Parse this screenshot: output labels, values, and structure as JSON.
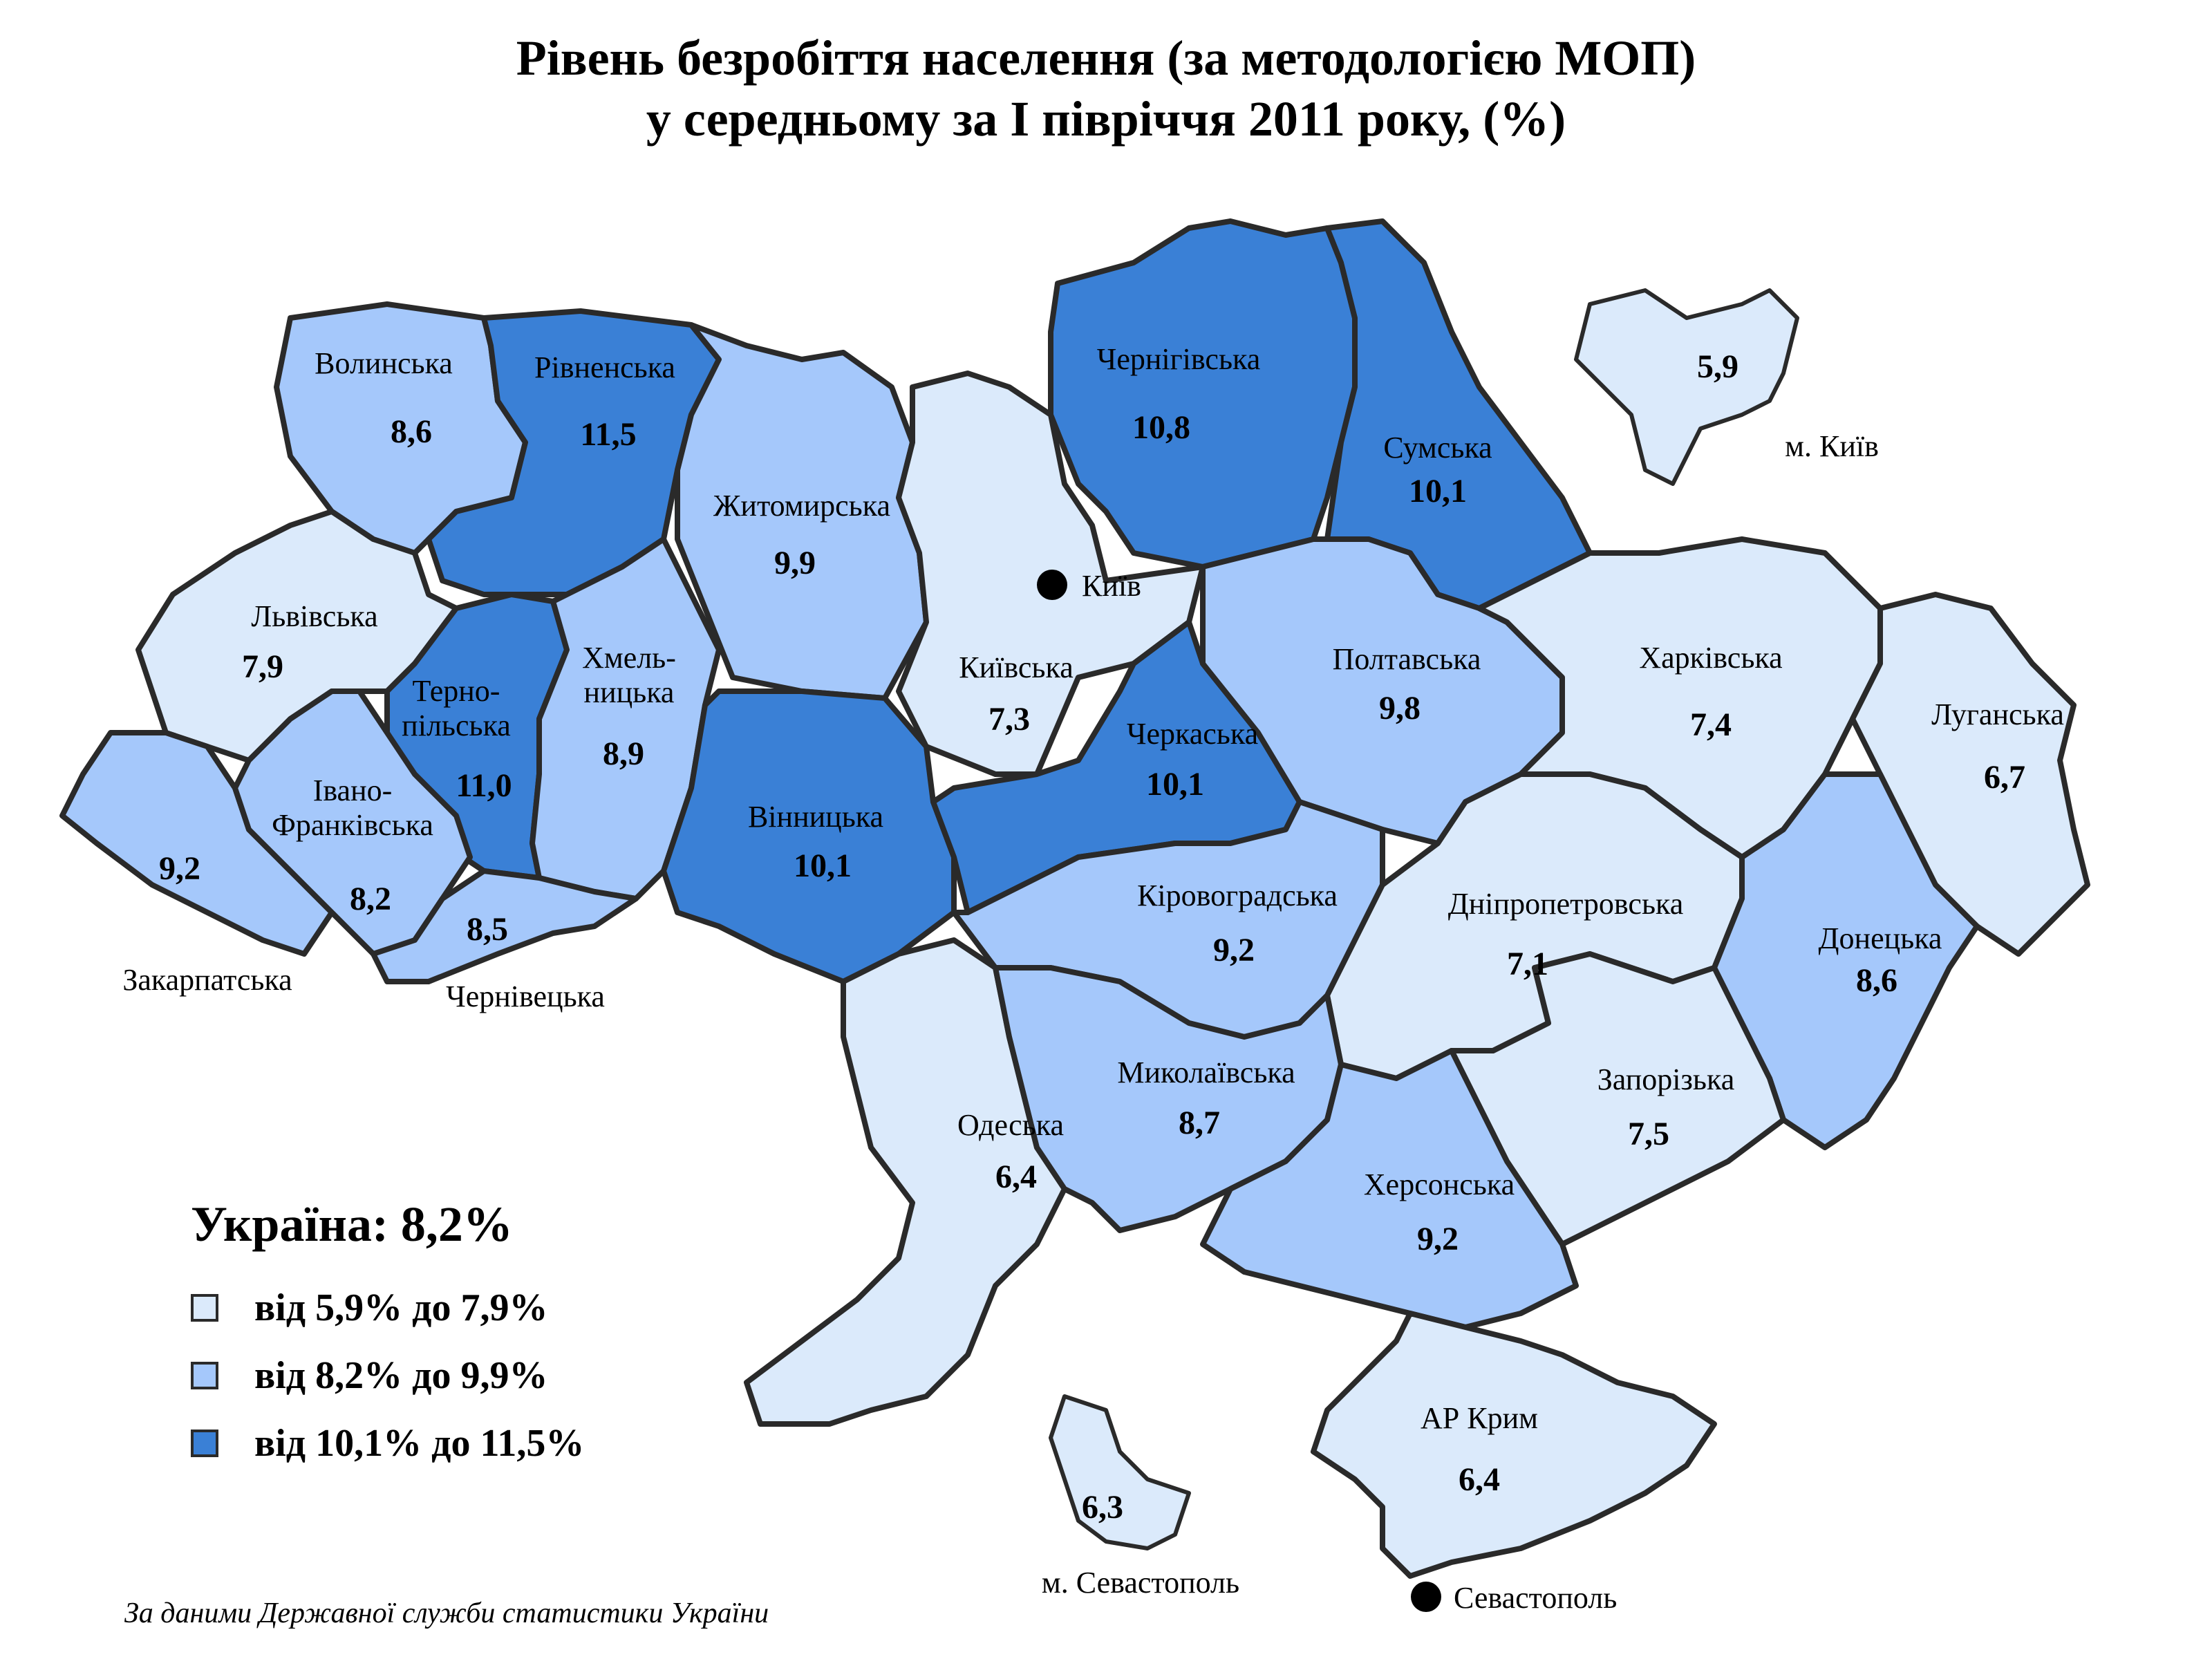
{
  "title_line1": "Рівень безробіття населення (за методологією МОП)",
  "title_line2": "у середньому за І півріччя 2011 року, (%)",
  "colors": {
    "low": "#dbeafb",
    "mid": "#a5c8fb",
    "high": "#3a80d6",
    "border": "#2a2a2a"
  },
  "regions": [
    {
      "id": "volyn",
      "name": "Волинська",
      "value": "8,6",
      "class": "mid"
    },
    {
      "id": "rivne",
      "name": "Рівненська",
      "value": "11,5",
      "class": "high"
    },
    {
      "id": "zhytomyr",
      "name": "Житомирська",
      "value": "9,9",
      "class": "mid"
    },
    {
      "id": "kyivska",
      "name": "Київська",
      "value": "7,3",
      "class": "low"
    },
    {
      "id": "chernihiv",
      "name": "Чернігівська",
      "value": "10,8",
      "class": "high"
    },
    {
      "id": "sumy",
      "name": "Сумська",
      "value": "10,1",
      "class": "high"
    },
    {
      "id": "lviv",
      "name": "Львівська",
      "value": "7,9",
      "class": "low"
    },
    {
      "id": "ternopil",
      "name": "Терно-\nпільська",
      "value": "11,0",
      "class": "high"
    },
    {
      "id": "khmelnytskyi",
      "name": "Хмель-\nницька",
      "value": "8,9",
      "class": "mid"
    },
    {
      "id": "zakarpattia",
      "name": "Закарпатська",
      "value": "9,2",
      "class": "mid"
    },
    {
      "id": "ivano",
      "name": "Івано-\nФранківська",
      "value": "8,2",
      "class": "mid"
    },
    {
      "id": "chernivtsi",
      "name": "Чернівецька",
      "value": "8,5",
      "class": "mid"
    },
    {
      "id": "vinnytsia",
      "name": "Вінницька",
      "value": "10,1",
      "class": "high"
    },
    {
      "id": "cherkasy",
      "name": "Черкаська",
      "value": "10,1",
      "class": "high"
    },
    {
      "id": "poltava",
      "name": "Полтавська",
      "value": "9,8",
      "class": "mid"
    },
    {
      "id": "kharkiv",
      "name": "Харківська",
      "value": "7,4",
      "class": "low"
    },
    {
      "id": "luhansk",
      "name": "Луганська",
      "value": "6,7",
      "class": "low"
    },
    {
      "id": "kirovohrad",
      "name": "Кіровоградська",
      "value": "9,2",
      "class": "mid"
    },
    {
      "id": "dnipro",
      "name": "Дніпропетровська",
      "value": "7,1",
      "class": "low"
    },
    {
      "id": "donetsk",
      "name": "Донецька",
      "value": "8,6",
      "class": "mid"
    },
    {
      "id": "odesa",
      "name": "Одеська",
      "value": "6,4",
      "class": "low"
    },
    {
      "id": "mykolaiv",
      "name": "Миколаївська",
      "value": "8,7",
      "class": "mid"
    },
    {
      "id": "zaporizhzhia",
      "name": "Запорізька",
      "value": "7,5",
      "class": "low"
    },
    {
      "id": "kherson",
      "name": "Херсонська",
      "value": "9,2",
      "class": "mid"
    },
    {
      "id": "crimea",
      "name": "АР Крим",
      "value": "6,4",
      "class": "low"
    },
    {
      "id": "kyiv_city",
      "name": "м. Київ",
      "value": "5,9",
      "class": "low"
    },
    {
      "id": "sevastopol_city",
      "name": "м. Севастополь",
      "value": "6,3",
      "class": "low"
    }
  ],
  "cities": [
    {
      "id": "kyiv",
      "name": "Київ"
    },
    {
      "id": "sevastopol",
      "name": "Севастополь"
    }
  ],
  "legend": {
    "ukraine_total": "Україна: 8,2%",
    "ranges": [
      {
        "label": "від 5,9% до 7,9%",
        "class": "low"
      },
      {
        "label": "від 8,2% до 9,9%",
        "class": "mid"
      },
      {
        "label": "від 10,1% до 11,5%",
        "class": "high"
      }
    ]
  },
  "source": "За даними Державної служби статистики України"
}
